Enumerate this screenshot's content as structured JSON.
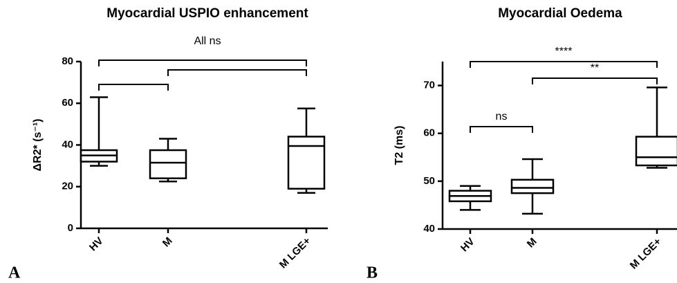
{
  "chart_data": [
    {
      "type": "box",
      "title": "Myocardial USPIO enhancement",
      "ylabel": "ΔR2* (s⁻¹)",
      "panel": "A",
      "categories": [
        "HV",
        "M",
        null,
        "M LGE+"
      ],
      "min": [
        30,
        22.5,
        null,
        17
      ],
      "q1": [
        32,
        24,
        null,
        19
      ],
      "median": [
        35,
        31.5,
        null,
        39.5
      ],
      "q3": [
        37.5,
        37.5,
        null,
        44
      ],
      "max": [
        62.9,
        43,
        null,
        57.5
      ],
      "color": "#000000",
      "ylim": [
        0,
        80
      ],
      "yticks": [
        0,
        20,
        40,
        60,
        80
      ],
      "annotation": "All ns",
      "brackets": [
        {
          "between": [
            "HV",
            "M LGE+"
          ]
        },
        {
          "between": [
            "M",
            "M LGE+"
          ]
        },
        {
          "between": [
            "HV",
            "M"
          ]
        }
      ]
    },
    {
      "type": "box",
      "title": "Myocardial Oedema",
      "ylabel": "T2 (ms)",
      "panel": "B",
      "categories": [
        "HV",
        "M",
        null,
        "M LGE+"
      ],
      "min": [
        44,
        43.2,
        null,
        52.8
      ],
      "q1": [
        45.8,
        47.5,
        null,
        53.3
      ],
      "median": [
        46.9,
        48.6,
        null,
        55
      ],
      "q3": [
        48,
        50.3,
        null,
        59.3
      ],
      "max": [
        49,
        54.6,
        null,
        69.6
      ],
      "color": "#000000",
      "ylim": [
        40,
        75
      ],
      "yticks": [
        40,
        50,
        60,
        70
      ],
      "brackets": [
        {
          "between": [
            "HV",
            "M LGE+"
          ],
          "label": "****"
        },
        {
          "between": [
            "M",
            "M LGE+"
          ],
          "label": "**"
        },
        {
          "between": [
            "HV",
            "M"
          ],
          "label": "ns"
        }
      ]
    }
  ]
}
